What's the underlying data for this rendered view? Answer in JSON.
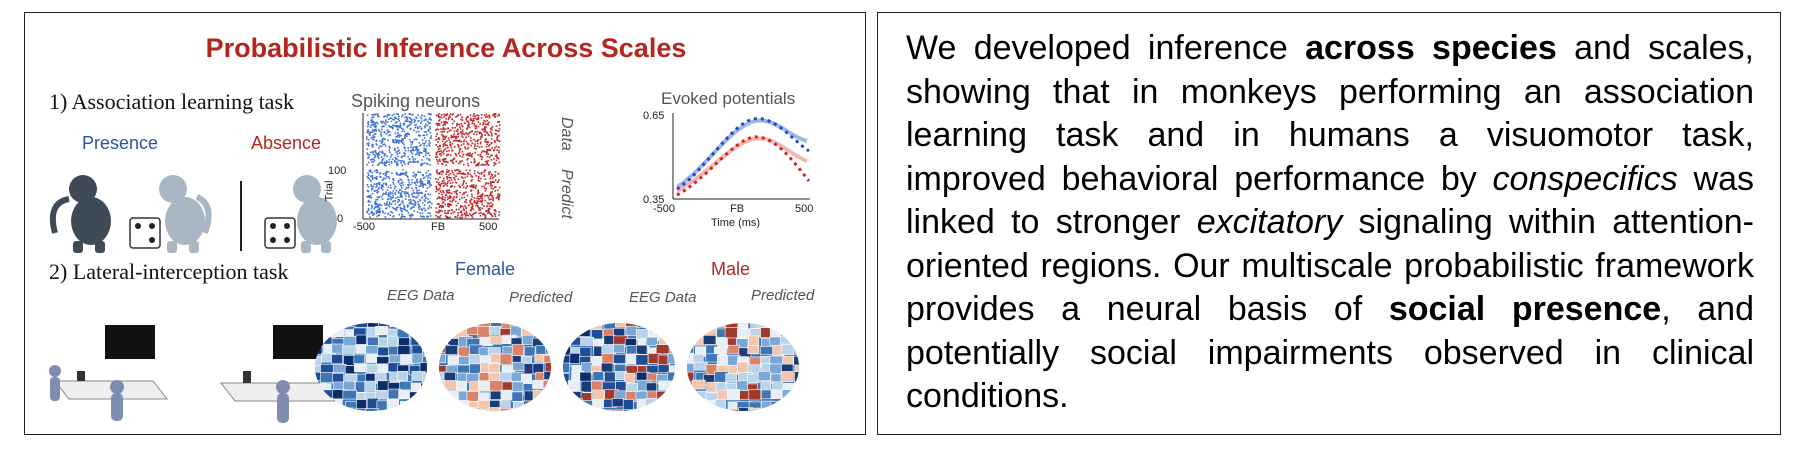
{
  "figure": {
    "title": "Probabilistic Inference Across Scales",
    "task1": {
      "label": "1) Association learning task",
      "presence_label": "Presence",
      "absence_label": "Absence"
    },
    "spiking": {
      "title": "Spiking neurons",
      "side_data": "Data",
      "side_predict": "Predict",
      "y_axis_label": "Trial",
      "y_tick_top": "100",
      "y_tick_bottom": "0",
      "x_ticks": [
        "-500",
        "FB",
        "500"
      ]
    },
    "evoked": {
      "title": "Evoked potentials",
      "y_ticks": [
        "0.65",
        "0.35"
      ],
      "x_ticks": [
        "-500",
        "FB",
        "500"
      ],
      "x_label": "Time (ms)"
    },
    "task2": {
      "label": "2) Lateral-interception task",
      "female_label": "Female",
      "male_label": "Male",
      "eeg_label_1": "EEG Data",
      "pred_label_1": "Predicted",
      "eeg_label_2": "EEG Data",
      "pred_label_2": "Predicted"
    },
    "colors": {
      "red": "#b3261e",
      "blue": "#2b55a6"
    }
  },
  "abstract": {
    "s1": "We developed inference ",
    "b1": "across species",
    "s2": " and scales, showing that in monkeys performing an association learning task and in humans a visuomotor task, improved behavioral performance by ",
    "i1": "conspecifics",
    "s3": " was linked to stronger ",
    "i2": "excitatory",
    "s4": " signaling within attention-oriented regions. Our multiscale probabilistic framework provides a neural basis of ",
    "b2": "social presence",
    "s5": ", and potentially social impairments observed in clinical conditions."
  }
}
